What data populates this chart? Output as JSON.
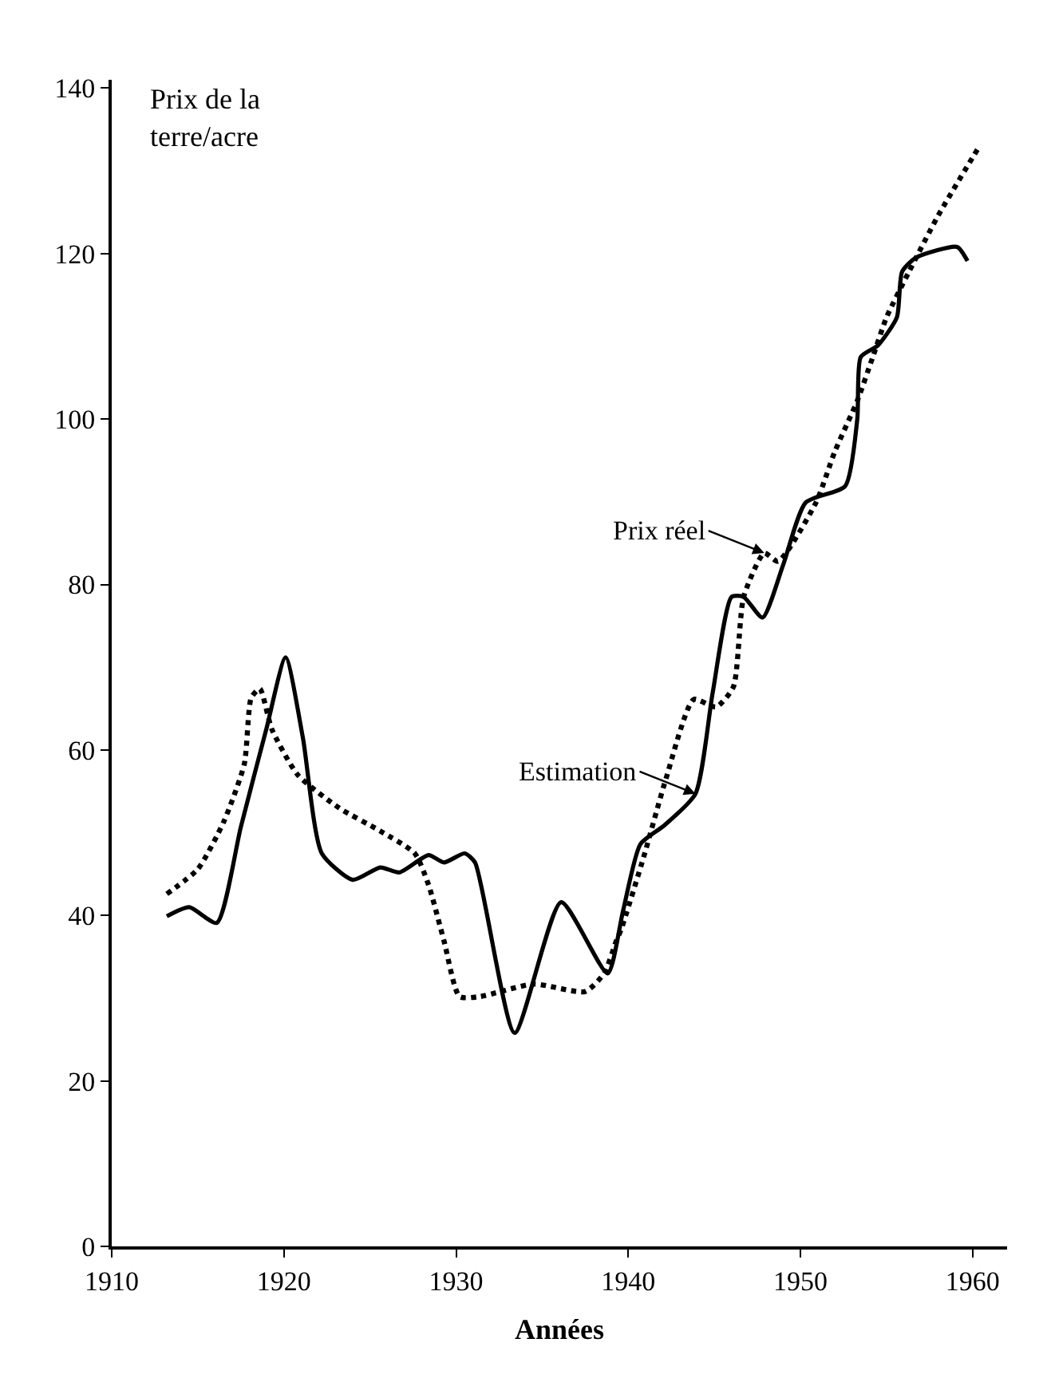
{
  "chart_data": {
    "type": "line",
    "xlabel": "Années",
    "ylabel": "Prix de la terre/acre",
    "xlim": [
      1910,
      1962
    ],
    "xticks": [
      1910,
      1920,
      1930,
      1940,
      1950,
      1960
    ],
    "ylim": [
      0,
      141
    ],
    "yticks": [
      0,
      20,
      40,
      60,
      80,
      100,
      120,
      140
    ],
    "grid": false,
    "legend": "right",
    "marker": "none",
    "series": [
      {
        "name": "Estimation",
        "color": "#000000",
        "line_style": "solid",
        "x": [
          1913.2,
          1914.5,
          1916.1,
          1917.5,
          1919.0,
          1920.1,
          1921.1,
          1922.2,
          1924.0,
          1925.6,
          1926.7,
          1928.4,
          1929.3,
          1930.5,
          1931.1,
          1933.4,
          1936.1,
          1938.8,
          1939.7,
          1940.7,
          1942.1,
          1943.9,
          1944.9,
          1946.0,
          1946.7,
          1947.8,
          1949.0,
          1950.3,
          1952.6,
          1953.3,
          1953.5,
          1954.5,
          1955.6,
          1955.9,
          1956.7,
          1959.1,
          1959.7
        ],
        "values": [
          39.9,
          41,
          39.1,
          50.7,
          62.7,
          71.2,
          61.5,
          47.5,
          44.3,
          45.8,
          45.2,
          47.3,
          46.4,
          47.5,
          46.4,
          25.8,
          41.6,
          33.0,
          40.6,
          48.6,
          50.9,
          54.7,
          66.9,
          78.5,
          78.5,
          76,
          82.4,
          89.9,
          91.9,
          100,
          107.5,
          108.9,
          112.3,
          117.8,
          119.5,
          120.8,
          119.1
        ]
      },
      {
        "name": "Prix réel",
        "color": "#000000",
        "line_style": "dotted",
        "x": [
          1913.2,
          1915.0,
          1916.5,
          1917.7,
          1918.1,
          1918.6,
          1919.3,
          1920.8,
          1923.2,
          1925.6,
          1927.6,
          1928.4,
          1929.3,
          1930.2,
          1931.4,
          1934.5,
          1937.5,
          1938.6,
          1939.3,
          1939.6,
          1940.9,
          1942.2,
          1943.8,
          1945.1,
          1946.1,
          1946.7,
          1947.9,
          1948.7,
          1950.9,
          1952.0,
          1953.3,
          1954.2,
          1955.0,
          1956.3,
          1958.0,
          1960.4
        ],
        "values": [
          42.6,
          45.6,
          51.3,
          58.3,
          66.3,
          67.4,
          62.5,
          57,
          53,
          50.2,
          47.5,
          43.7,
          36.9,
          30.2,
          30.2,
          31.7,
          30.8,
          33,
          36.9,
          38.4,
          47.1,
          56.6,
          66.1,
          65.2,
          67.6,
          78.5,
          83.8,
          82.8,
          89.9,
          96.1,
          102.2,
          107.5,
          112.3,
          117.8,
          124.6,
          133
        ]
      }
    ]
  }
}
